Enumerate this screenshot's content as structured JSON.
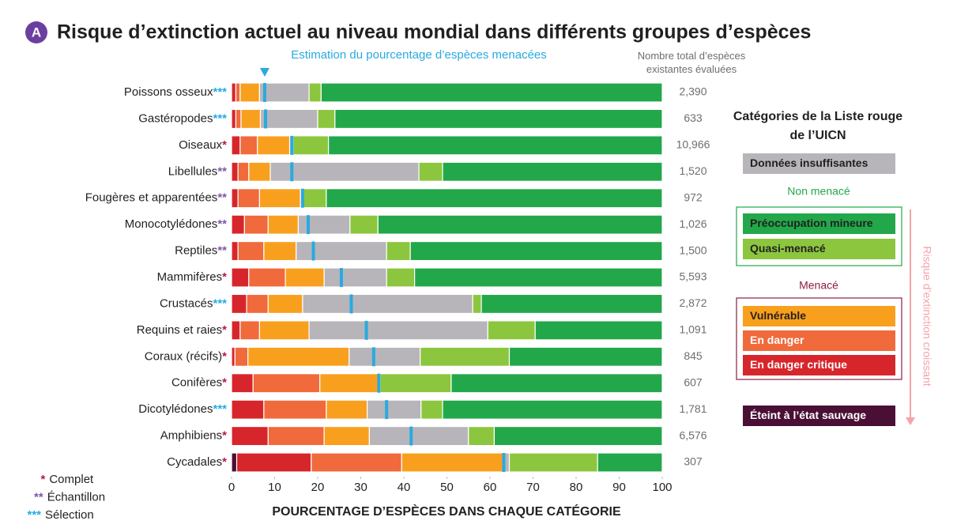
{
  "chart_data": {
    "type": "stacked-bar",
    "panel": "A",
    "title": "Risque d’extinction actuel au niveau mondial dans différents groupes d’espèces",
    "estimate_label": "Estimation du pourcentage d’espèces menacées",
    "xlabel": "POURCENTAGE D’ESPÈCES DANS CHAQUE CATÉGORIE",
    "xlim": [
      0,
      100
    ],
    "xticks": [
      0,
      10,
      20,
      30,
      40,
      50,
      60,
      70,
      80,
      90,
      100
    ],
    "categories": [
      "Poissons osseux",
      "Gastéropodes",
      "Oiseaux",
      "Libellules",
      "Fougères et apparentées",
      "Monocotylédones",
      "Reptiles",
      "Mammifères",
      "Crustacés",
      "Requins et raies",
      "Coraux (récifs)",
      "Conifères",
      "Dicotylédones",
      "Amphibiens",
      "Cycadales"
    ],
    "category_marks": [
      "***",
      "***",
      "*",
      "**",
      "**",
      "**",
      "**",
      "*",
      "***",
      "*",
      "*",
      "*",
      "***",
      "*",
      "*"
    ],
    "series": [
      {
        "name": "Éteint à l’état sauvage",
        "color": "#4a0f34",
        "values": [
          0,
          0,
          0,
          0,
          0,
          0,
          0,
          0,
          0,
          0,
          0,
          0,
          0,
          0,
          1.2
        ]
      },
      {
        "name": "En danger critique",
        "color": "#d7262b",
        "values": [
          1,
          1,
          2,
          1.5,
          1.5,
          3,
          1.5,
          4,
          3.5,
          2,
          0.8,
          5,
          7.5,
          8.5,
          17.3
        ]
      },
      {
        "name": "En danger",
        "color": "#f06a3c",
        "values": [
          1,
          1.2,
          4,
          2.5,
          5,
          5.5,
          6,
          8.5,
          5,
          4.5,
          3,
          15.5,
          14.5,
          13,
          21
        ]
      },
      {
        "name": "Vulnérable",
        "color": "#f8a01e",
        "values": [
          4.5,
          4.5,
          7.5,
          5,
          9.5,
          7,
          7.5,
          9,
          8,
          11.5,
          23.5,
          13.5,
          9.5,
          10.5,
          23.5
        ]
      },
      {
        "name": "Données insuffisantes",
        "color": "#b7b5ba",
        "values": [
          11.5,
          13.3,
          0.8,
          34.5,
          0.5,
          12,
          21,
          14.5,
          39.5,
          41.5,
          16.5,
          0.5,
          12.5,
          23,
          1.5
        ]
      },
      {
        "name": "Quasi-menacé",
        "color": "#8cc63e",
        "values": [
          2.8,
          4,
          8.2,
          5.5,
          5.5,
          6.5,
          5.5,
          6.5,
          2,
          11,
          20.7,
          16.5,
          5,
          6,
          20.5
        ]
      },
      {
        "name": "Préoccupation mineure",
        "color": "#22a84a",
        "values": [
          79.2,
          76,
          77.5,
          51,
          78,
          66,
          58.5,
          57.5,
          42,
          29.5,
          35.5,
          49,
          51,
          39,
          15
        ]
      }
    ],
    "estimate": {
      "color": "#29aae1",
      "values": [
        7.7,
        7.9,
        14,
        14,
        16.5,
        17.8,
        19,
        25.5,
        27.8,
        31.3,
        33,
        34.2,
        36,
        41.7,
        63.2
      ]
    },
    "totals": {
      "title": "Nombre total d’espèces existantes évaluées",
      "values": [
        2390,
        633,
        10966,
        1520,
        972,
        1026,
        1500,
        5593,
        2872,
        1091,
        845,
        607,
        1781,
        6576,
        307
      ],
      "value_labels": [
        "2,390",
        "633",
        "10,966",
        "1,520",
        "972",
        "1,026",
        "1,500",
        "5,593",
        "2,872",
        "1,091",
        "845",
        "607",
        "1,781",
        "6,576",
        "307"
      ]
    },
    "legend": {
      "title": "Catégories de la Liste rouge de l’UICN",
      "group_non_threatened": "Non menacé",
      "group_threatened": "Menacé",
      "arrow_label": "Risque d’extinction croissant"
    },
    "notes": [
      {
        "mark": "*",
        "label": "Complet",
        "color": "#b5174f"
      },
      {
        "mark": "**",
        "label": "Échantillon",
        "color": "#7a5aa8"
      },
      {
        "mark": "***",
        "label": "Sélection",
        "color": "#29aae1"
      }
    ]
  }
}
